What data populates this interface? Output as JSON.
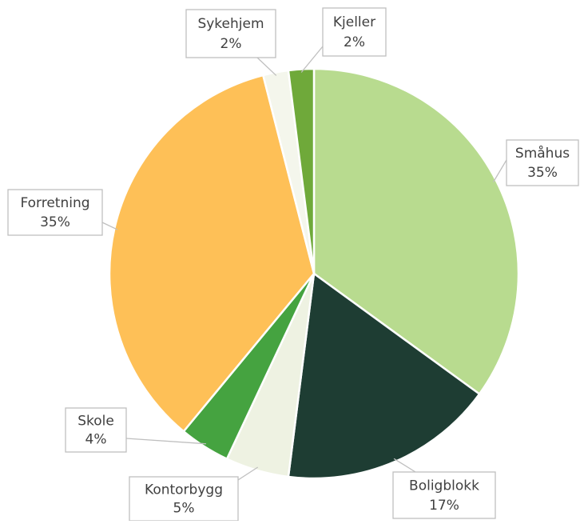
{
  "chart_data": {
    "type": "pie",
    "categories": [
      "Småhus",
      "Boligblokk",
      "Kontorbygg",
      "Skole",
      "Forretning",
      "Sykehjem",
      "Kjeller"
    ],
    "values": [
      35,
      17,
      5,
      4,
      35,
      2,
      2
    ],
    "value_labels": [
      "35%",
      "17%",
      "5%",
      "4%",
      "35%",
      "2%",
      "2%"
    ],
    "colors": [
      "#b8db8f",
      "#1e3d33",
      "#eef2e2",
      "#45a340",
      "#fec057",
      "#f4f6ec",
      "#6fa93a"
    ]
  }
}
